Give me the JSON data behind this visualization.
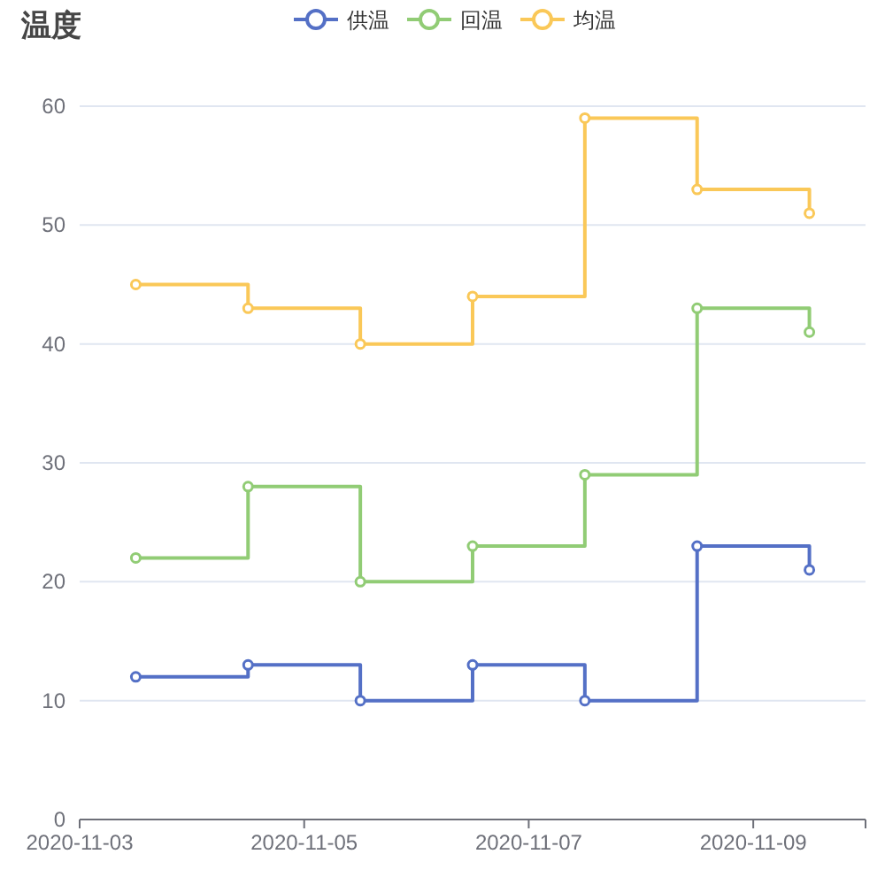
{
  "chart_data": {
    "type": "step",
    "title": "温度",
    "x": [
      "2020-11-03T12:00",
      "2020-11-04T12:00",
      "2020-11-05T12:00",
      "2020-11-06T12:00",
      "2020-11-07T12:00",
      "2020-11-08T12:00",
      "2020-11-09T12:00"
    ],
    "series": [
      {
        "name": "供温",
        "color": "#5470c6",
        "values": [
          12,
          13,
          10,
          13,
          10,
          23,
          21
        ]
      },
      {
        "name": "回温",
        "color": "#91cc75",
        "values": [
          22,
          28,
          20,
          23,
          29,
          43,
          41
        ]
      },
      {
        "name": "均温",
        "color": "#fac858",
        "values": [
          45,
          43,
          40,
          44,
          59,
          53,
          51
        ]
      }
    ],
    "xlim": [
      "2020-11-03",
      "2020-11-10"
    ],
    "xticks": [
      "2020-11-03",
      "2020-11-05",
      "2020-11-07",
      "2020-11-09"
    ],
    "ylim": [
      0,
      60
    ],
    "yticks": [
      0,
      10,
      20,
      30,
      40,
      50,
      60
    ],
    "grid": "y",
    "legend": "top",
    "marker": "circle",
    "line_style": "solid"
  }
}
